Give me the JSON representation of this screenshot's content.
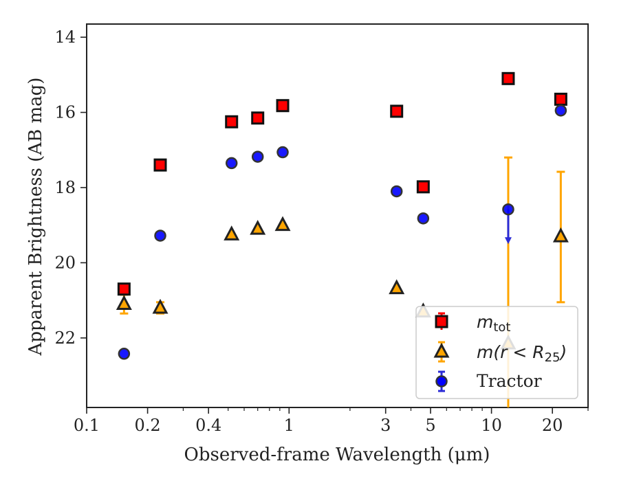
{
  "chart_data": {
    "type": "scatter",
    "xlabel": "Observed-frame Wavelength (μm)",
    "ylabel": "Apparent Brightness (AB mag)",
    "xscale": "log",
    "yaxis_inverted": true,
    "xlim": [
      0.1,
      30
    ],
    "ylim": [
      23.85,
      13.65
    ],
    "xticks": [
      {
        "value": 0.1,
        "label": "0.1"
      },
      {
        "value": 0.2,
        "label": "0.2"
      },
      {
        "value": 0.4,
        "label": "0.4"
      },
      {
        "value": 1,
        "label": "1"
      },
      {
        "value": 3,
        "label": "3"
      },
      {
        "value": 5,
        "label": "5"
      },
      {
        "value": 10,
        "label": "10"
      },
      {
        "value": 20,
        "label": "20"
      }
    ],
    "yticks": [
      {
        "value": 14,
        "label": "14"
      },
      {
        "value": 16,
        "label": "16"
      },
      {
        "value": 18,
        "label": "18"
      },
      {
        "value": 20,
        "label": "20"
      },
      {
        "value": 22,
        "label": "22"
      }
    ],
    "legend_position": "lower-right",
    "series": [
      {
        "name": "m_tot",
        "legend_main": "m",
        "legend_sub": "tot",
        "marker": "square",
        "color": "#ff0000",
        "points": [
          {
            "x": 0.153,
            "y": 20.7
          },
          {
            "x": 0.231,
            "y": 17.4
          },
          {
            "x": 0.52,
            "y": 16.25
          },
          {
            "x": 0.7,
            "y": 16.15
          },
          {
            "x": 0.93,
            "y": 15.82
          },
          {
            "x": 3.4,
            "y": 15.97
          },
          {
            "x": 4.6,
            "y": 17.98
          },
          {
            "x": 12.1,
            "y": 15.1
          },
          {
            "x": 22.0,
            "y": 15.65
          }
        ]
      },
      {
        "name": "m(r < R25)",
        "legend_main": "m(r < R",
        "legend_sub": "25",
        "legend_end": ")",
        "marker": "triangle",
        "color": "#ffa500",
        "points": [
          {
            "x": 0.153,
            "y": 21.1,
            "yerr": 0.25
          },
          {
            "x": 0.231,
            "y": 21.2,
            "yerr": 0.15
          },
          {
            "x": 0.52,
            "y": 19.25
          },
          {
            "x": 0.7,
            "y": 19.1
          },
          {
            "x": 0.93,
            "y": 19.0
          },
          {
            "x": 3.4,
            "y": 20.68
          },
          {
            "x": 4.6,
            "y": 21.3
          },
          {
            "x": 12.1,
            "y": 22.15,
            "ylow": 17.2,
            "yhigh": 24.0
          },
          {
            "x": 22.0,
            "y": 19.3,
            "ylow": 17.58,
            "yhigh": 21.05
          }
        ]
      },
      {
        "name": "Tractor",
        "marker": "circle",
        "color": "#0000ff",
        "points": [
          {
            "x": 0.153,
            "y": 22.42
          },
          {
            "x": 0.231,
            "y": 19.28
          },
          {
            "x": 0.52,
            "y": 17.35
          },
          {
            "x": 0.7,
            "y": 17.18
          },
          {
            "x": 0.93,
            "y": 17.06
          },
          {
            "x": 3.4,
            "y": 18.1
          },
          {
            "x": 4.6,
            "y": 18.82
          },
          {
            "x": 12.1,
            "y": 18.58,
            "limit_to": 19.45
          },
          {
            "x": 22.0,
            "y": 15.95
          }
        ]
      }
    ]
  }
}
